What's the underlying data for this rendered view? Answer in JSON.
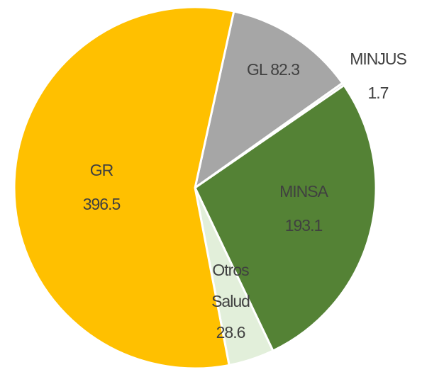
{
  "chart_data": {
    "type": "pie",
    "categories": [
      "GL",
      "MINJUS",
      "MINSA",
      "Otros Salud",
      "GR"
    ],
    "values": [
      82.3,
      1.7,
      193.1,
      28.6,
      396.5
    ],
    "colors": [
      "#a6a6a6",
      "#d9d9d9",
      "#548235",
      "#e2efda",
      "#ffc000"
    ]
  }
}
